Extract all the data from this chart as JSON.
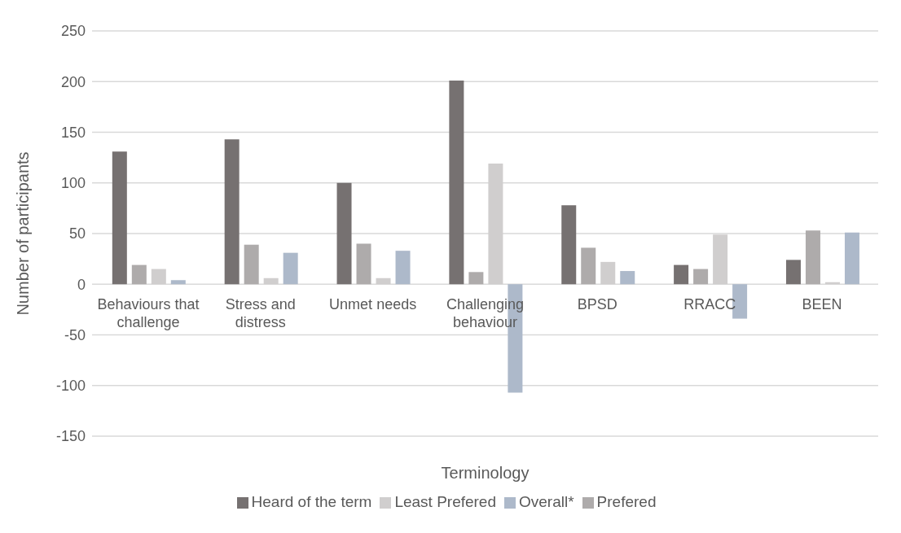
{
  "chart_data": {
    "type": "bar",
    "xlabel": "Terminology",
    "ylabel": "Number of participants",
    "categories": [
      "Behaviours that challenge",
      "Stress and distress",
      "Unmet needs",
      "Challenging behaviour",
      "BPSD",
      "RRACC",
      "BEEN"
    ],
    "series": [
      {
        "name": "Heard of the term",
        "color": "#767171",
        "values": [
          131,
          143,
          100,
          201,
          78,
          19,
          24
        ]
      },
      {
        "name": "Prefered",
        "color": "#aeabab",
        "values": [
          19,
          39,
          40,
          12,
          36,
          15,
          53
        ]
      },
      {
        "name": "Least Prefered",
        "color": "#d0cece",
        "values": [
          15,
          6,
          6,
          119,
          22,
          49,
          2
        ]
      },
      {
        "name": "Overall*",
        "color": "#adb9ca",
        "values": [
          4,
          31,
          33,
          -107,
          13,
          -34,
          51
        ]
      }
    ],
    "ylim": [
      -150,
      250
    ],
    "yticks": [
      -150,
      -100,
      -50,
      0,
      50,
      100,
      150,
      200,
      250
    ],
    "grid": "y",
    "legend": "bottom"
  }
}
